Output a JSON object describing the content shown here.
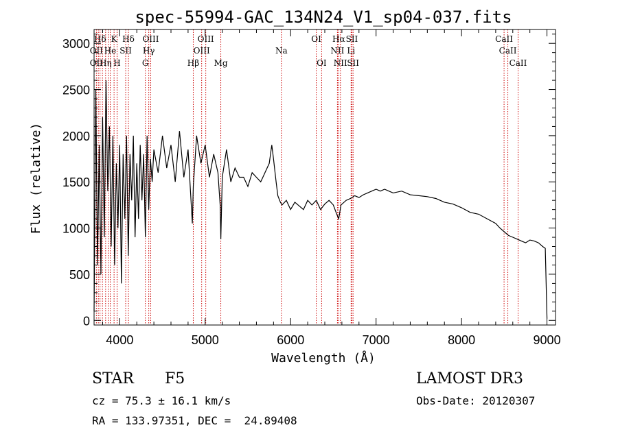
{
  "chart_data": {
    "type": "line",
    "title": "spec-55994-GAC_134N24_V1_sp04-037.fits",
    "xlabel": "Wavelength (Å)",
    "ylabel": "Flux (relative)",
    "xlim": [
      3700,
      9100
    ],
    "ylim": [
      -50,
      3150
    ],
    "xticks": [
      4000,
      5000,
      6000,
      7000,
      8000,
      9000
    ],
    "yticks": [
      0,
      500,
      1000,
      1500,
      2000,
      2500,
      3000
    ],
    "grid": false,
    "series": [
      {
        "name": "flux",
        "x": [
          3700,
          3720,
          3740,
          3760,
          3780,
          3800,
          3820,
          3840,
          3860,
          3880,
          3900,
          3920,
          3940,
          3960,
          3980,
          4000,
          4020,
          4040,
          4060,
          4080,
          4100,
          4120,
          4140,
          4160,
          4180,
          4200,
          4220,
          4240,
          4260,
          4280,
          4300,
          4320,
          4340,
          4360,
          4380,
          4400,
          4450,
          4500,
          4550,
          4600,
          4650,
          4700,
          4750,
          4800,
          4850,
          4861,
          4900,
          4950,
          5000,
          5050,
          5100,
          5150,
          5175,
          5183,
          5200,
          5250,
          5300,
          5350,
          5400,
          5450,
          5500,
          5550,
          5600,
          5650,
          5700,
          5750,
          5780,
          5800,
          5830,
          5850,
          5880,
          5900,
          5950,
          6000,
          6050,
          6100,
          6150,
          6200,
          6250,
          6300,
          6350,
          6400,
          6450,
          6500,
          6540,
          6563,
          6590,
          6650,
          6700,
          6750,
          6800,
          6850,
          6900,
          6950,
          7000,
          7050,
          7100,
          7150,
          7200,
          7300,
          7400,
          7500,
          7600,
          7700,
          7800,
          7900,
          8000,
          8100,
          8200,
          8300,
          8400,
          8450,
          8500,
          8550,
          8600,
          8650,
          8700,
          8750,
          8800,
          8850,
          8900,
          8950,
          8980,
          9000
        ],
        "y": [
          100,
          2500,
          600,
          1900,
          500,
          2200,
          900,
          2600,
          1400,
          2100,
          800,
          2000,
          600,
          1700,
          1000,
          1900,
          400,
          1800,
          1100,
          2000,
          700,
          1800,
          1300,
          2000,
          900,
          1700,
          1100,
          1900,
          1300,
          1800,
          900,
          2000,
          1200,
          1750,
          1500,
          1850,
          1600,
          2000,
          1650,
          1900,
          1500,
          2050,
          1550,
          1850,
          1050,
          1450,
          2000,
          1700,
          1900,
          1550,
          1800,
          1600,
          1250,
          880,
          1550,
          1850,
          1500,
          1650,
          1550,
          1550,
          1450,
          1600,
          1550,
          1500,
          1600,
          1700,
          1900,
          1750,
          1500,
          1350,
          1280,
          1250,
          1300,
          1200,
          1280,
          1240,
          1200,
          1300,
          1250,
          1300,
          1200,
          1260,
          1300,
          1250,
          1150,
          1100,
          1250,
          1300,
          1320,
          1350,
          1330,
          1360,
          1380,
          1400,
          1420,
          1400,
          1420,
          1400,
          1380,
          1400,
          1360,
          1350,
          1340,
          1320,
          1280,
          1260,
          1220,
          1170,
          1150,
          1100,
          1050,
          1000,
          960,
          920,
          900,
          880,
          860,
          840,
          870,
          860,
          840,
          800,
          780,
          20
        ]
      }
    ],
    "lines_red": [
      3727,
      3750,
      3770,
      3798,
      3835,
      3869,
      3889,
      3934,
      3969,
      3970,
      4070,
      4102,
      4300,
      4340,
      4363,
      4861,
      4959,
      5007,
      5183,
      5892,
      6300,
      6363,
      6548,
      6563,
      6583,
      6708,
      6717,
      6731,
      8498,
      8542,
      8662
    ],
    "line_labels": [
      {
        "text": "Hδ",
        "x": 3770,
        "row": 1
      },
      {
        "text": "K",
        "x": 3934,
        "row": 1
      },
      {
        "text": "Hδ",
        "x": 4102,
        "row": 1
      },
      {
        "text": "OIII",
        "x": 4363,
        "row": 1
      },
      {
        "text": "OIII",
        "x": 5007,
        "row": 1
      },
      {
        "text": "OI",
        "x": 6300,
        "row": 1
      },
      {
        "text": "Hα",
        "x": 6563,
        "row": 1
      },
      {
        "text": "SII",
        "x": 6717,
        "row": 1
      },
      {
        "text": "CaII",
        "x": 8498,
        "row": 1
      },
      {
        "text": "OII",
        "x": 3727,
        "row": 2
      },
      {
        "text": "He",
        "x": 3889,
        "row": 2
      },
      {
        "text": "SII",
        "x": 4070,
        "row": 2
      },
      {
        "text": "Hγ",
        "x": 4340,
        "row": 2
      },
      {
        "text": "OIII",
        "x": 4959,
        "row": 2
      },
      {
        "text": "Na",
        "x": 5892,
        "row": 2
      },
      {
        "text": "NII",
        "x": 6548,
        "row": 2
      },
      {
        "text": "Li",
        "x": 6708,
        "row": 2
      },
      {
        "text": "CaII",
        "x": 8542,
        "row": 2
      },
      {
        "text": "OII",
        "x": 3727,
        "row": 3
      },
      {
        "text": "Hη",
        "x": 3835,
        "row": 3
      },
      {
        "text": "H",
        "x": 3969,
        "row": 3
      },
      {
        "text": "G",
        "x": 4300,
        "row": 3
      },
      {
        "text": "Hβ",
        "x": 4861,
        "row": 3
      },
      {
        "text": "Mg",
        "x": 5183,
        "row": 3
      },
      {
        "text": "OI",
        "x": 6363,
        "row": 3
      },
      {
        "text": "NII",
        "x": 6583,
        "row": 3
      },
      {
        "text": "SII",
        "x": 6731,
        "row": 3
      },
      {
        "text": "CaII",
        "x": 8662,
        "row": 3
      }
    ]
  },
  "info": {
    "object_type": "STAR",
    "subclass": "F5",
    "survey": "LAMOST DR3",
    "redshift": "cz = 75.3 ± 16.1 km/s",
    "obs_date": "Obs-Date: 20120307",
    "coords": "RA = 133.97351, DEC =  24.89408"
  },
  "colors": {
    "line_marker": "#cc0000",
    "spectrum": "#000000"
  }
}
